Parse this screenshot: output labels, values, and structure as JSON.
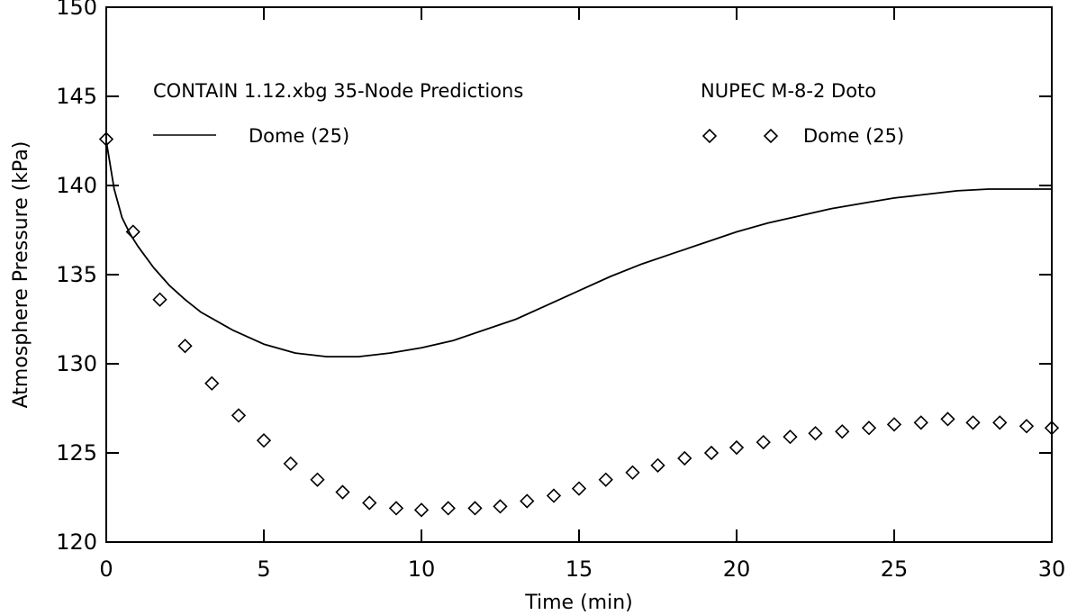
{
  "chart_data": {
    "type": "line",
    "title": "",
    "xlabel": "Time (min)",
    "ylabel": "Atmosphere Pressure (kPa)",
    "xlim": [
      0,
      30
    ],
    "ylim": [
      120,
      150
    ],
    "x_ticks": [
      "0",
      "5",
      "10",
      "15",
      "20",
      "25",
      "30"
    ],
    "y_ticks": [
      "120",
      "125",
      "130",
      "135",
      "140",
      "145",
      "150"
    ],
    "grid": false,
    "legend": {
      "line_group_title": "CONTAIN 1.12.xbg 35-Node Predictions",
      "line_label": "Dome (25)",
      "marker_group_title": "NUPEC M-8-2 Doto",
      "marker_label": "Dome (25)"
    },
    "series": [
      {
        "name": "Dome (25)",
        "kind": "line",
        "x": [
          0,
          0.25,
          0.5,
          0.75,
          1,
          1.5,
          2,
          2.5,
          3,
          4,
          5,
          6,
          7,
          8,
          9,
          10,
          11,
          12,
          13,
          14,
          15,
          16,
          17,
          18,
          19,
          20,
          21,
          22,
          23,
          24,
          25,
          26,
          27,
          28,
          29,
          30
        ],
        "y": [
          142.5,
          139.8,
          138.2,
          137.3,
          136.6,
          135.4,
          134.4,
          133.6,
          132.9,
          131.9,
          131.1,
          130.6,
          130.4,
          130.4,
          130.6,
          130.9,
          131.3,
          131.9,
          132.5,
          133.3,
          134.1,
          134.9,
          135.6,
          136.2,
          136.8,
          137.4,
          137.9,
          138.3,
          138.7,
          139.0,
          139.3,
          139.5,
          139.7,
          139.8,
          139.8,
          139.8
        ]
      },
      {
        "name": "Dome (25)",
        "kind": "marker",
        "marker": "diamond",
        "x": [
          0,
          0.85,
          1.7,
          2.5,
          3.35,
          4.2,
          5.0,
          5.85,
          6.7,
          7.5,
          8.35,
          9.2,
          10.0,
          10.85,
          11.7,
          12.5,
          13.35,
          14.2,
          15.0,
          15.85,
          16.7,
          17.5,
          18.35,
          19.2,
          20.0,
          20.85,
          21.7,
          22.5,
          23.35,
          24.2,
          25.0,
          25.85,
          26.7,
          27.5,
          28.35,
          29.2,
          30.0
        ],
        "y": [
          142.6,
          137.4,
          133.6,
          131.0,
          128.9,
          127.1,
          125.7,
          124.4,
          123.5,
          122.8,
          122.2,
          121.9,
          121.8,
          121.9,
          121.9,
          122.0,
          122.3,
          122.6,
          123.0,
          123.5,
          123.9,
          124.3,
          124.7,
          125.0,
          125.3,
          125.6,
          125.9,
          126.1,
          126.2,
          126.4,
          126.6,
          126.7,
          126.9,
          126.7,
          126.7,
          126.5,
          126.4
        ]
      }
    ]
  }
}
